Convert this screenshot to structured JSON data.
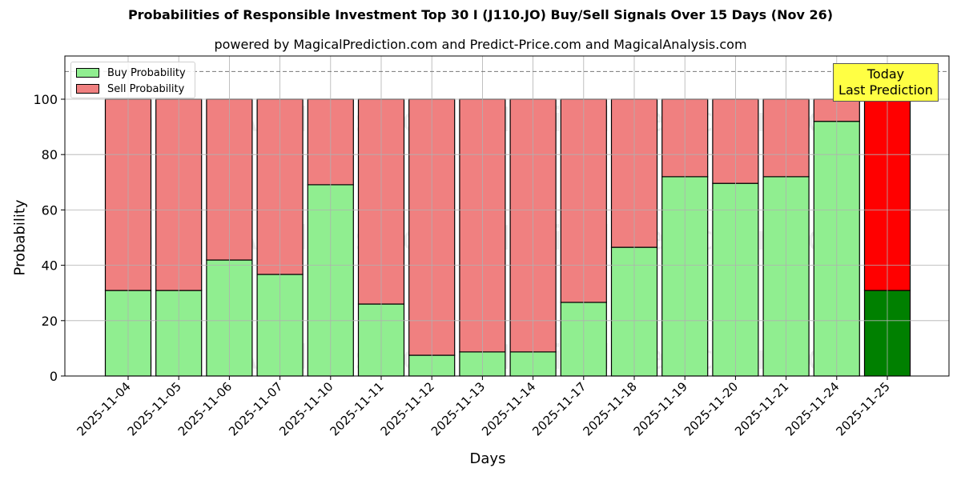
{
  "chart_data": {
    "type": "bar",
    "stacked": true,
    "title": "Probabilities of Responsible Investment Top 30 I (J110.JO) Buy/Sell Signals Over 15 Days (Nov 26)",
    "subtitle": "powered by MagicalPrediction.com and Predict-Price.com and MagicalAnalysis.com",
    "xlabel": "Days",
    "ylabel": "Probability",
    "ylim": [
      0,
      115
    ],
    "yticks": [
      0,
      20,
      40,
      60,
      80,
      100
    ],
    "grid": true,
    "reference_line": {
      "y": 110,
      "style": "dashed"
    },
    "legend_position": "upper left",
    "categories": [
      "2025-11-04",
      "2025-11-05",
      "2025-11-06",
      "2025-11-07",
      "2025-11-10",
      "2025-11-11",
      "2025-11-12",
      "2025-11-13",
      "2025-11-14",
      "2025-11-17",
      "2025-11-18",
      "2025-11-19",
      "2025-11-20",
      "2025-11-21",
      "2025-11-24",
      "2025-11-25"
    ],
    "series": [
      {
        "name": "Buy Probability",
        "color": "#90ee90",
        "values": [
          30.9,
          30.9,
          41.9,
          36.7,
          69.1,
          26.0,
          7.5,
          8.7,
          8.7,
          26.6,
          46.5,
          72.0,
          69.6,
          72.0,
          92.0,
          30.9
        ]
      },
      {
        "name": "Sell Probability",
        "color": "#f08080",
        "values": [
          69.1,
          69.1,
          58.1,
          63.3,
          30.9,
          74.0,
          92.5,
          91.3,
          91.3,
          73.4,
          53.5,
          28.0,
          30.4,
          28.0,
          8.0,
          69.1
        ]
      }
    ],
    "highlight": {
      "index": 15,
      "buy_color": "#008000",
      "sell_color": "#ff0000"
    },
    "annotation": {
      "text_line1": "Today",
      "text_line2": "Last Prediction",
      "background": "#ffff44"
    },
    "watermarks": [
      "MagicalAnalysis.com",
      "MagicalPrediction.com"
    ]
  }
}
